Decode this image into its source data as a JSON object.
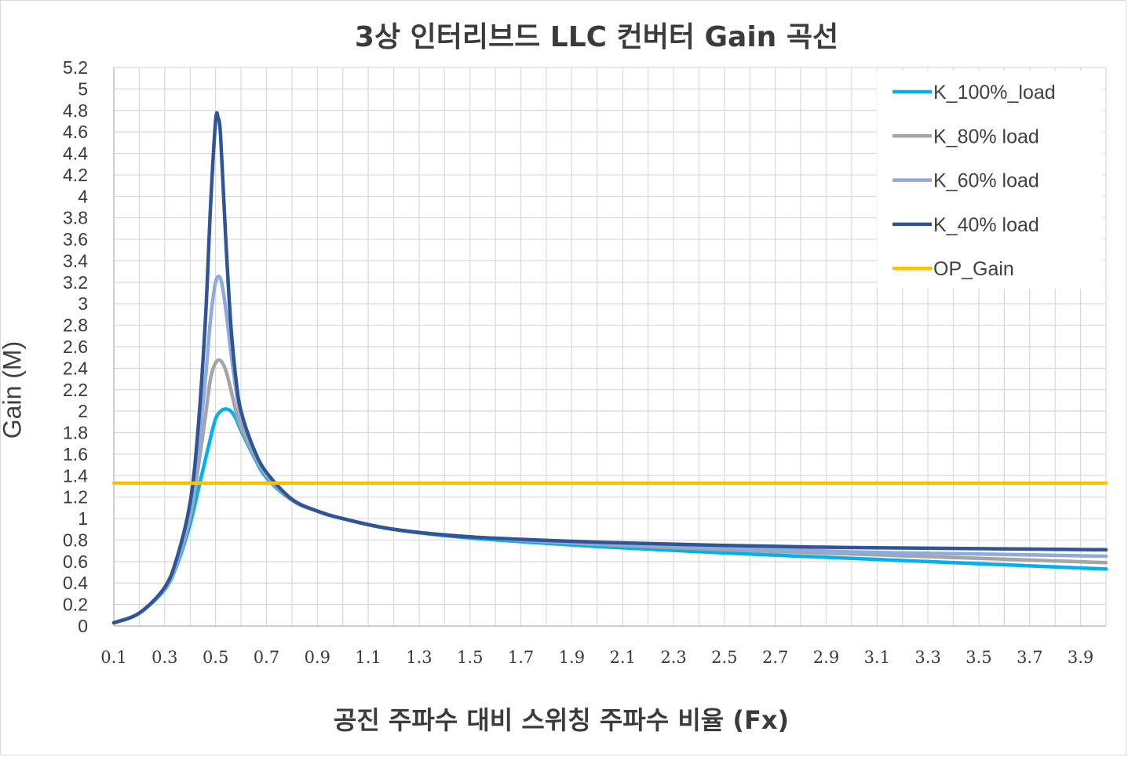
{
  "chart_data": {
    "type": "line",
    "title": "3상 인터리브드 LLC 컨버터 Gain 곡선",
    "xlabel": "공진 주파수 대비 스위칭 주파수 비율 (Fx)",
    "ylabel": "Gain (M)",
    "xlim": [
      0.1,
      4.0
    ],
    "ylim": [
      0,
      5.2
    ],
    "x_ticks": [
      "0.1",
      "0.3",
      "0.5",
      "0.7",
      "0.9",
      "1.1",
      "1.3",
      "1.5",
      "1.7",
      "1.9",
      "2.1",
      "2.3",
      "2.5",
      "2.7",
      "2.9",
      "3.1",
      "3.3",
      "3.5",
      "3.7",
      "3.9"
    ],
    "y_ticks": [
      "0",
      "0.2",
      "0.4",
      "0.6",
      "0.8",
      "1",
      "1.2",
      "1.4",
      "1.6",
      "1.8",
      "2",
      "2.2",
      "2.4",
      "2.6",
      "2.8",
      "3",
      "3.2",
      "3.4",
      "3.6",
      "3.8",
      "4",
      "4.2",
      "4.4",
      "4.6",
      "4.8",
      "5",
      "5.2"
    ],
    "grid": true,
    "legend_position": "top-right",
    "series": [
      {
        "name": "K_100%_load",
        "color": "#00b0f0",
        "x": [
          0.1,
          0.2,
          0.3,
          0.35,
          0.4,
          0.43,
          0.46,
          0.48,
          0.5,
          0.52,
          0.54,
          0.56,
          0.58,
          0.6,
          0.65,
          0.7,
          0.8,
          0.9,
          1.0,
          1.2,
          1.5,
          2.0,
          2.5,
          3.0,
          3.5,
          4.0
        ],
        "y": [
          0.03,
          0.12,
          0.34,
          0.58,
          0.95,
          1.25,
          1.55,
          1.75,
          1.93,
          2.0,
          2.02,
          2.0,
          1.93,
          1.82,
          1.58,
          1.38,
          1.17,
          1.07,
          1.0,
          0.9,
          0.82,
          0.74,
          0.68,
          0.63,
          0.58,
          0.53
        ]
      },
      {
        "name": "K_80% load",
        "color": "#a5a5a5",
        "x": [
          0.1,
          0.2,
          0.3,
          0.35,
          0.4,
          0.43,
          0.46,
          0.48,
          0.5,
          0.52,
          0.54,
          0.56,
          0.58,
          0.6,
          0.65,
          0.7,
          0.8,
          0.9,
          1.0,
          1.2,
          1.5,
          2.0,
          2.5,
          3.0,
          3.5,
          4.0
        ],
        "y": [
          0.03,
          0.12,
          0.35,
          0.6,
          1.02,
          1.45,
          1.95,
          2.3,
          2.45,
          2.47,
          2.38,
          2.2,
          2.0,
          1.85,
          1.6,
          1.4,
          1.17,
          1.07,
          1.0,
          0.9,
          0.83,
          0.76,
          0.71,
          0.67,
          0.63,
          0.59
        ]
      },
      {
        "name": "K_60% load",
        "color": "#8faadc",
        "x": [
          0.1,
          0.2,
          0.3,
          0.35,
          0.4,
          0.43,
          0.46,
          0.48,
          0.5,
          0.52,
          0.54,
          0.56,
          0.58,
          0.6,
          0.65,
          0.7,
          0.8,
          0.9,
          1.0,
          1.2,
          1.5,
          2.0,
          2.5,
          3.0,
          3.5,
          4.0
        ],
        "y": [
          0.03,
          0.12,
          0.35,
          0.62,
          1.08,
          1.6,
          2.3,
          2.85,
          3.2,
          3.23,
          2.95,
          2.55,
          2.2,
          1.95,
          1.63,
          1.42,
          1.18,
          1.07,
          1.0,
          0.9,
          0.83,
          0.77,
          0.73,
          0.69,
          0.67,
          0.65
        ]
      },
      {
        "name": "K_40% load",
        "color": "#2f5597",
        "x": [
          0.1,
          0.2,
          0.3,
          0.35,
          0.4,
          0.43,
          0.46,
          0.48,
          0.5,
          0.51,
          0.52,
          0.54,
          0.56,
          0.58,
          0.6,
          0.65,
          0.7,
          0.8,
          0.9,
          1.0,
          1.2,
          1.5,
          2.0,
          2.5,
          3.0,
          3.5,
          4.0
        ],
        "y": [
          0.03,
          0.12,
          0.36,
          0.65,
          1.15,
          1.8,
          2.85,
          3.9,
          4.7,
          4.73,
          4.55,
          3.6,
          2.8,
          2.3,
          2.0,
          1.65,
          1.43,
          1.18,
          1.07,
          1.0,
          0.9,
          0.83,
          0.78,
          0.75,
          0.73,
          0.72,
          0.71
        ]
      },
      {
        "name": "OP_Gain",
        "color": "#ffc000",
        "x": [
          0.1,
          4.0
        ],
        "y": [
          1.33,
          1.33
        ]
      }
    ]
  }
}
